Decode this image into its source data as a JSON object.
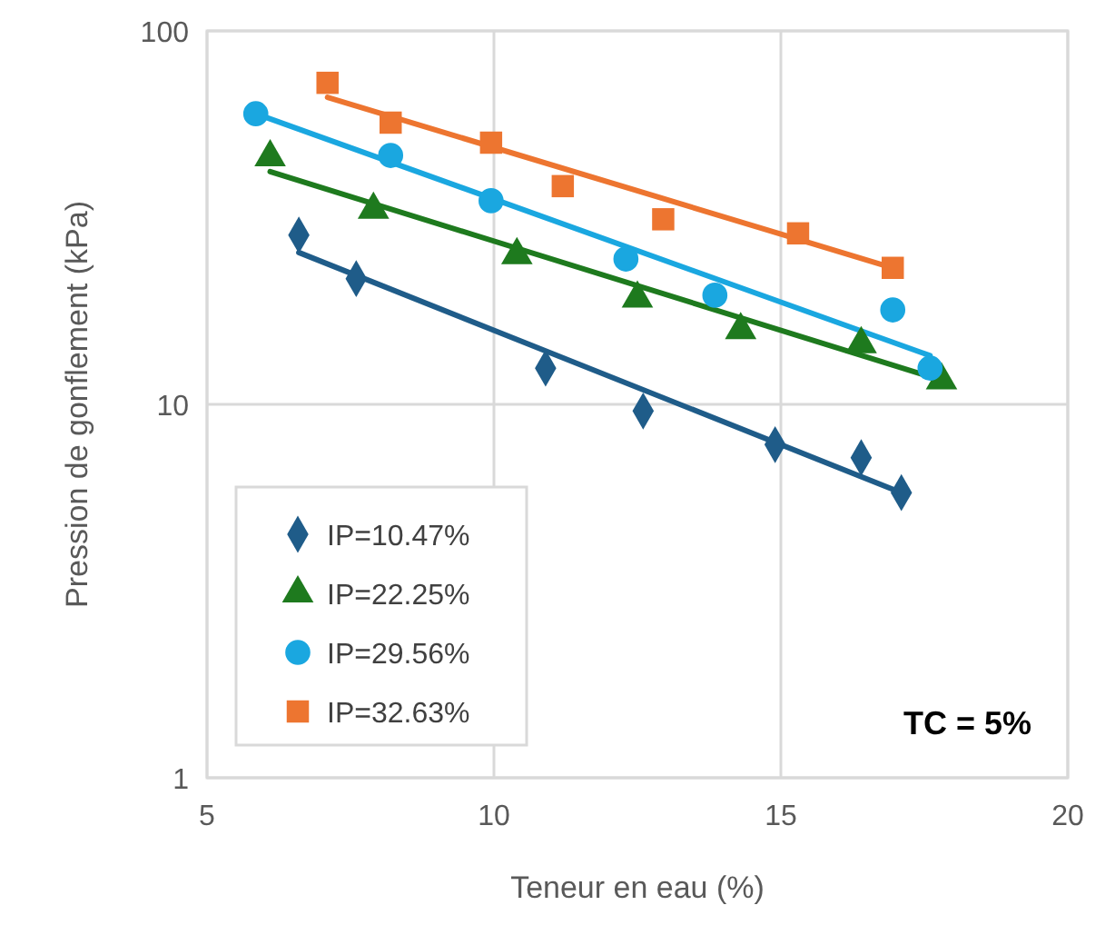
{
  "chart_data": {
    "type": "scatter",
    "xlabel": "Teneur en eau (%)",
    "ylabel": "Pression de gonflement (kPa)",
    "log": "y",
    "grid": true,
    "legend": "bottom left",
    "xlim": [
      5,
      20
    ],
    "xticks": [
      5,
      10,
      15,
      20
    ],
    "ylim": [
      1,
      100
    ],
    "yticks": [
      1,
      10,
      100
    ],
    "annotations": [
      "TC = 5%"
    ],
    "series": [
      {
        "name": "IP=10.47%",
        "color": "#1f5c89",
        "marker": "diamond",
        "x": [
          6.6,
          7.6,
          10.9,
          12.6,
          14.9,
          16.4,
          17.1
        ],
        "values": [
          28.4,
          21.7,
          12.5,
          9.6,
          7.8,
          7.2,
          5.8
        ]
      },
      {
        "name": "IP=22.25%",
        "color": "#1e7a1e",
        "marker": "triangle",
        "x": [
          6.1,
          7.9,
          10.4,
          12.5,
          14.3,
          16.4,
          17.8
        ],
        "values": [
          45.9,
          33.2,
          25.1,
          19.2,
          15.8,
          14.5,
          11.6
        ]
      },
      {
        "name": "IP=29.56%",
        "color": "#1aa7e0",
        "marker": "circle",
        "x": [
          5.85,
          8.2,
          9.95,
          12.3,
          13.85,
          16.95,
          17.6
        ],
        "values": [
          60,
          46.4,
          35.1,
          24.5,
          19.6,
          17.9,
          12.5
        ]
      },
      {
        "name": "IP=32.63%",
        "color": "#ed7530",
        "marker": "square",
        "x": [
          7.1,
          8.2,
          9.95,
          11.2,
          12.95,
          15.3,
          16.95
        ],
        "values": [
          72.6,
          56.8,
          50.2,
          38.4,
          31.3,
          28.7,
          23.2
        ]
      },
      {
        "type": "line",
        "color": "#1f5c89",
        "x": [
          6.6,
          17.1
        ],
        "values": [
          25.5,
          5.8
        ]
      },
      {
        "type": "line",
        "color": "#1e7a1e",
        "x": [
          6.1,
          17.8
        ],
        "values": [
          42,
          11.6
        ]
      },
      {
        "type": "line",
        "color": "#1aa7e0",
        "x": [
          5.85,
          17.6
        ],
        "values": [
          60,
          13.5
        ]
      },
      {
        "type": "line",
        "color": "#ed7530",
        "x": [
          7.1,
          16.95
        ],
        "values": [
          66.4,
          23.2
        ]
      }
    ]
  }
}
